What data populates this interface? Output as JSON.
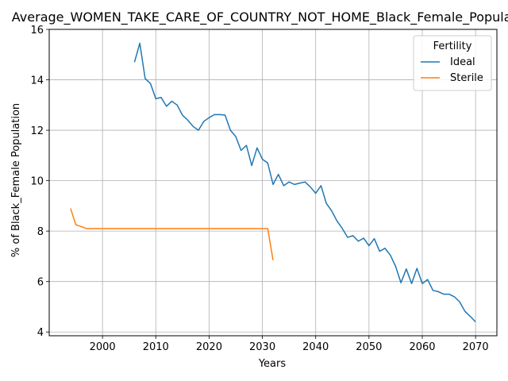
{
  "chart_data": {
    "type": "line",
    "title": "Average_WOMEN_TAKE_CARE_OF_COUNTRY_NOT_HOME_Black_Female_Population",
    "xlabel": "Years",
    "ylabel": "% of Black_Female Population",
    "xlim": [
      1990,
      2074
    ],
    "ylim": [
      3.85,
      16
    ],
    "xticks": [
      2000,
      2010,
      2020,
      2030,
      2040,
      2050,
      2060,
      2070
    ],
    "yticks": [
      4,
      6,
      8,
      10,
      12,
      14,
      16
    ],
    "grid": true,
    "legend": {
      "title": "Fertility",
      "placement": "top-right"
    },
    "series": [
      {
        "name": "Ideal",
        "color": "#1f77b4",
        "x": [
          2006,
          2007,
          2008,
          2009,
          2010,
          2011,
          2012,
          2013,
          2014,
          2015,
          2016,
          2017,
          2018,
          2019,
          2020,
          2021,
          2022,
          2023,
          2024,
          2025,
          2026,
          2027,
          2028,
          2029,
          2030,
          2031,
          2032,
          2033,
          2034,
          2035,
          2036,
          2037,
          2038,
          2039,
          2040,
          2041,
          2042,
          2043,
          2044,
          2045,
          2046,
          2047,
          2048,
          2049,
          2050,
          2051,
          2052,
          2053,
          2054,
          2055,
          2056,
          2057,
          2058,
          2059,
          2060,
          2061,
          2062,
          2063,
          2064,
          2065,
          2066,
          2067,
          2068,
          2069,
          2070
        ],
        "y": [
          14.7,
          15.45,
          14.05,
          13.85,
          13.25,
          13.3,
          12.95,
          13.15,
          13.0,
          12.6,
          12.4,
          12.15,
          12.0,
          12.35,
          12.5,
          12.62,
          12.62,
          12.6,
          12.0,
          11.75,
          11.2,
          11.4,
          10.6,
          11.3,
          10.85,
          10.7,
          9.85,
          10.25,
          9.8,
          9.95,
          9.85,
          9.9,
          9.95,
          9.75,
          9.5,
          9.8,
          9.1,
          8.8,
          8.4,
          8.1,
          7.75,
          7.82,
          7.6,
          7.72,
          7.42,
          7.7,
          7.2,
          7.32,
          7.05,
          6.6,
          5.95,
          6.5,
          5.92,
          6.52,
          5.92,
          6.08,
          5.65,
          5.6,
          5.5,
          5.5,
          5.4,
          5.2,
          4.82,
          4.62,
          4.4
        ]
      },
      {
        "name": "Sterile",
        "color": "#ff7f0e",
        "x": [
          1994,
          1995,
          1996,
          1997,
          1998,
          1999,
          2000,
          2001,
          2002,
          2003,
          2004,
          2005,
          2006,
          2007,
          2008,
          2009,
          2010,
          2011,
          2012,
          2013,
          2014,
          2015,
          2016,
          2017,
          2018,
          2019,
          2020,
          2021,
          2022,
          2023,
          2024,
          2025,
          2026,
          2027,
          2028,
          2029,
          2030,
          2031,
          2032
        ],
        "y": [
          8.9,
          8.25,
          8.18,
          8.1,
          8.1,
          8.1,
          8.1,
          8.1,
          8.1,
          8.1,
          8.1,
          8.1,
          8.1,
          8.1,
          8.1,
          8.1,
          8.1,
          8.1,
          8.1,
          8.1,
          8.1,
          8.1,
          8.1,
          8.1,
          8.1,
          8.1,
          8.1,
          8.1,
          8.1,
          8.1,
          8.1,
          8.1,
          8.1,
          8.1,
          8.1,
          8.1,
          8.1,
          8.1,
          6.85
        ]
      }
    ]
  }
}
